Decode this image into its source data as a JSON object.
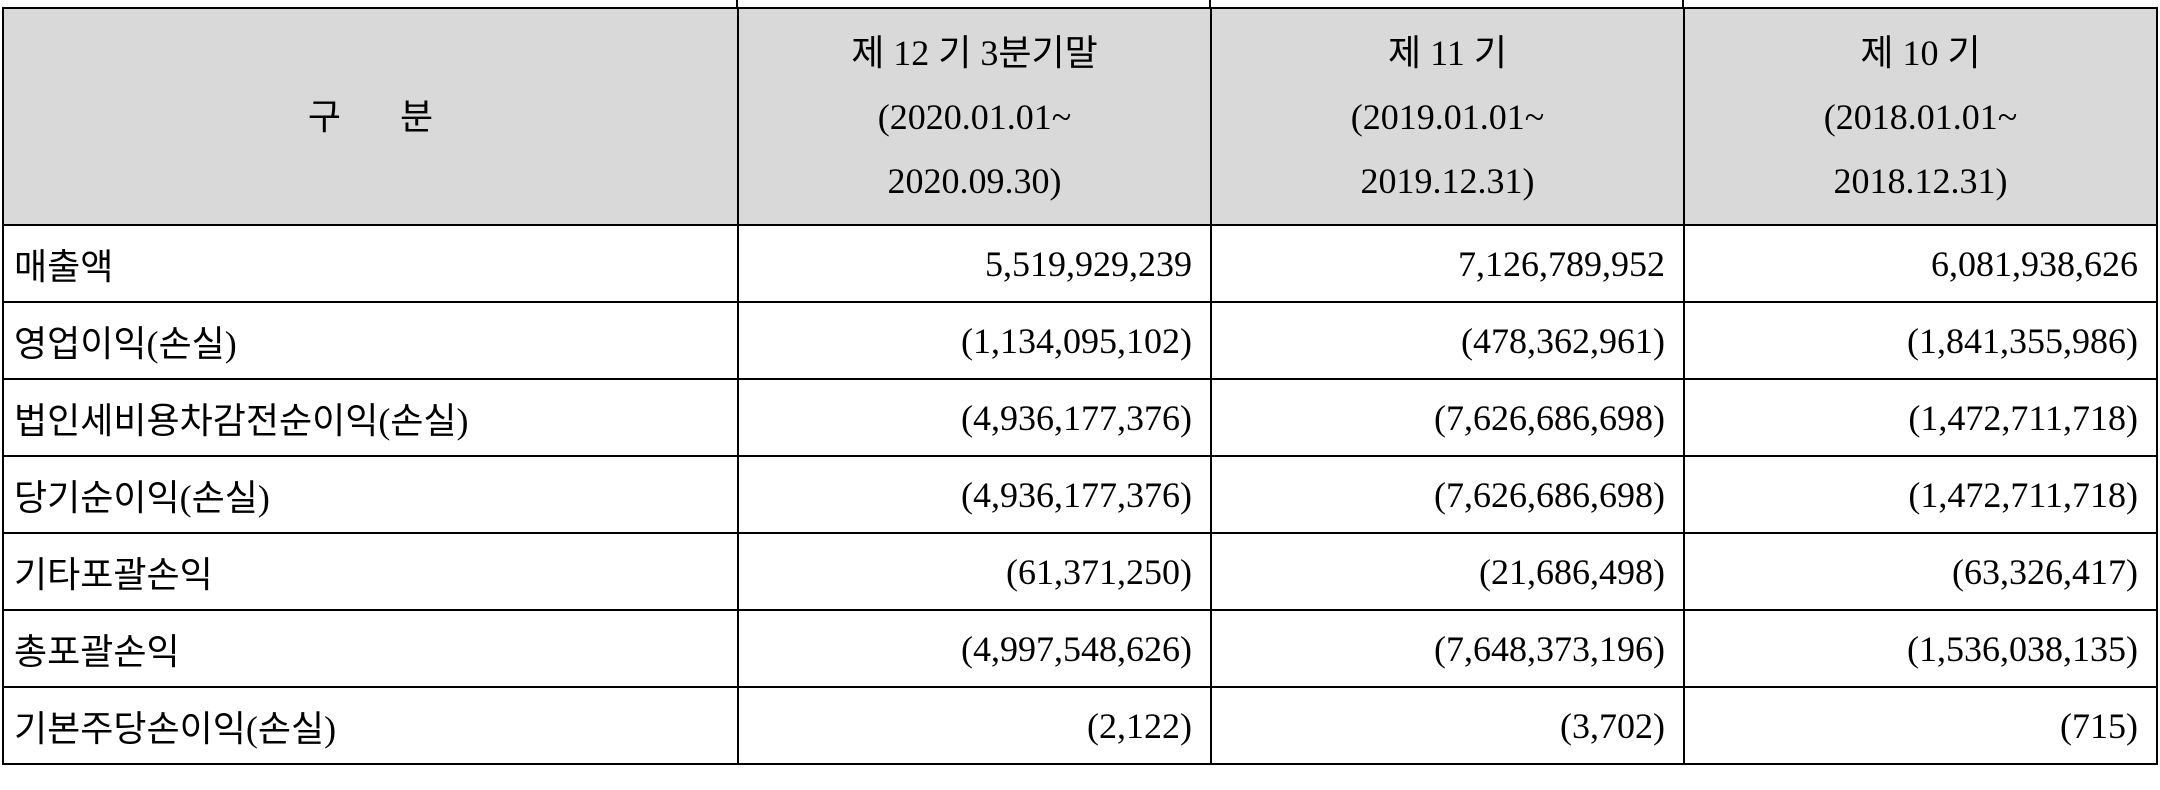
{
  "table": {
    "header": [
      [
        "구 분"
      ],
      [
        "제 12 기 3분기말",
        "(2020.01.01~",
        "2020.09.30)"
      ],
      [
        "제 11 기",
        "(2019.01.01~",
        "2019.12.31)"
      ],
      [
        "제 10 기",
        "(2018.01.01~",
        "2018.12.31)"
      ]
    ],
    "rows": [
      [
        "매출액",
        "5,519,929,239",
        "7,126,789,952",
        "6,081,938,626"
      ],
      [
        "영업이익(손실)",
        "(1,134,095,102)",
        "(478,362,961)",
        "(1,841,355,986)"
      ],
      [
        "법인세비용차감전순이익(손실)",
        "(4,936,177,376)",
        "(7,626,686,698)",
        "(1,472,711,718)"
      ],
      [
        "당기순이익(손실)",
        "(4,936,177,376)",
        "(7,626,686,698)",
        "(1,472,711,718)"
      ],
      [
        "기타포괄손익",
        "(61,371,250)",
        "(21,686,498)",
        "(63,326,417)"
      ],
      [
        "총포괄손익",
        "(4,997,548,626)",
        "(7,648,373,196)",
        "(1,536,038,135)"
      ],
      [
        "기본주당손이익(손실)",
        "(2,122)",
        "(3,702)",
        "(715)"
      ]
    ]
  }
}
